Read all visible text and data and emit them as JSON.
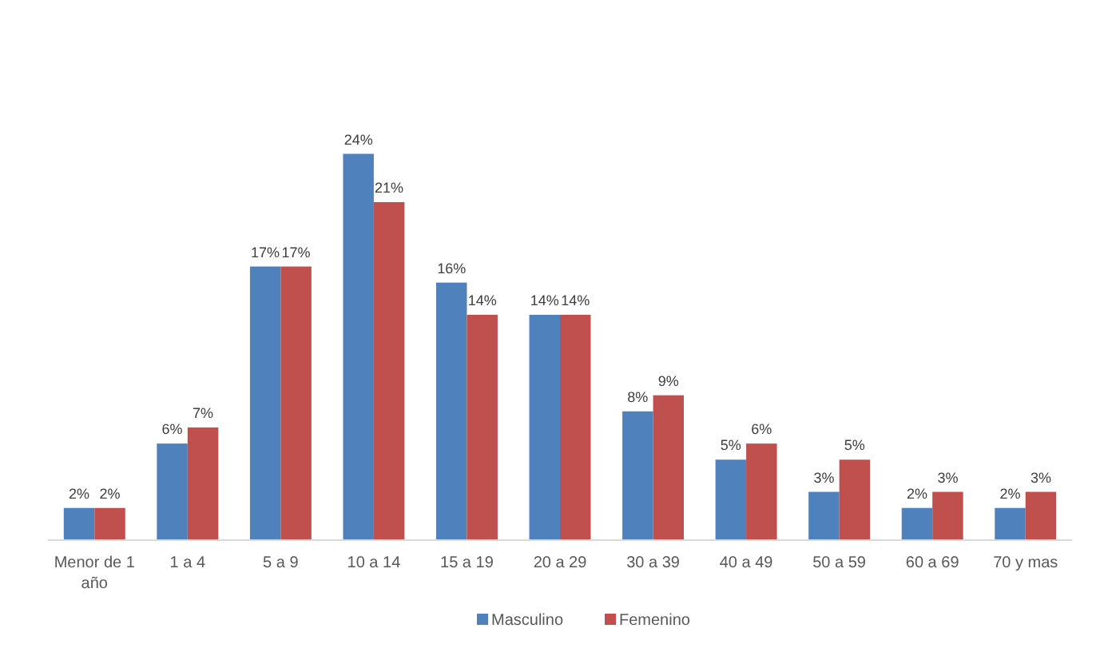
{
  "chart_data": {
    "type": "bar",
    "categories": [
      "Menor de 1 año",
      "1 a 4",
      "5 a 9",
      "10 a 14",
      "15 a 19",
      "20 a 29",
      "30 a 39",
      "40 a 49",
      "50 a 59",
      "60 a 69",
      "70 y mas"
    ],
    "series": [
      {
        "name": "Masculino",
        "color": "#4f81bd",
        "values": [
          2,
          6,
          17,
          24,
          16,
          14,
          8,
          5,
          3,
          2,
          2
        ],
        "value_labels": [
          "2%",
          "6%",
          "17%",
          "24%",
          "16%",
          "14%",
          "8%",
          "5%",
          "3%",
          "2%",
          "2%"
        ]
      },
      {
        "name": "Femenino",
        "color": "#c0504d",
        "values": [
          2,
          7,
          17,
          21,
          14,
          14,
          9,
          6,
          5,
          3,
          3
        ],
        "value_labels": [
          "2%",
          "7%",
          "17%",
          "21%",
          "14%",
          "14%",
          "9%",
          "6%",
          "5%",
          "3%",
          "3%"
        ]
      }
    ],
    "legend": "bottom"
  }
}
